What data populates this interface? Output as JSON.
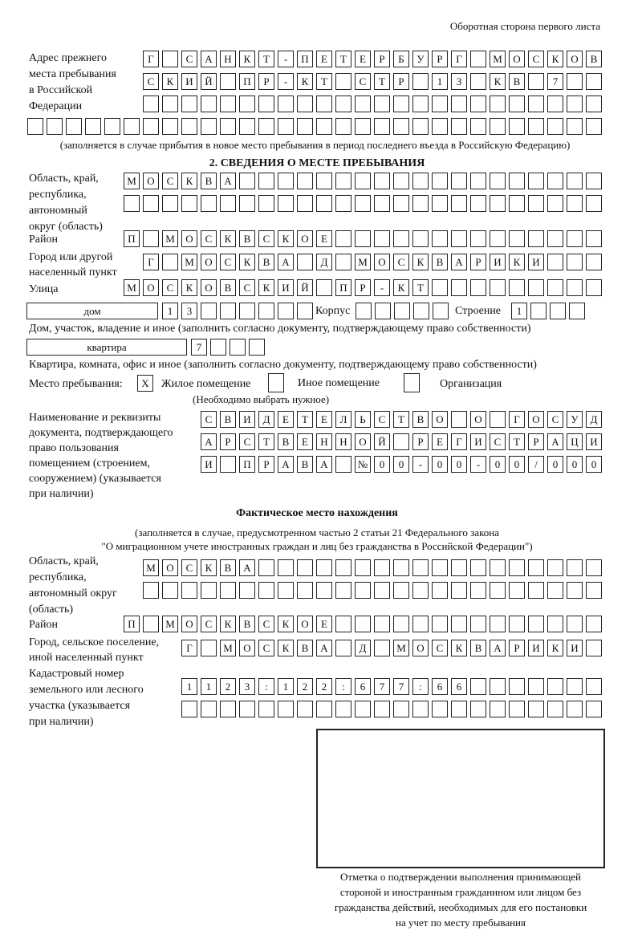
{
  "header": {
    "page_side": "Оборотная сторона первого листа"
  },
  "prev_address": {
    "label_lines": [
      "Адрес прежнего",
      "места пребывания",
      "в Российской",
      "Федерации"
    ],
    "rows": [
      "Г САНКТ-ПЕТЕРБУРГ МОСКОВ",
      "СКИЙ ПР-КТ СТР 13 КВ 7",
      "",
      ""
    ],
    "note": "(заполняется в случае прибытия в новое место пребывания в период последнего въезда в Российскую Федерацию)"
  },
  "section2": {
    "title": "2. СВЕДЕНИЯ О МЕСТЕ ПРЕБЫВАНИЯ",
    "region_label": [
      "Область, край,",
      "республика,",
      "автономный",
      "округ (область)"
    ],
    "region_rows": [
      "МОСКВА",
      ""
    ],
    "district_label": "Район",
    "district": "П МОСКВСКОЕ",
    "city_label": [
      "Город или другой",
      "населенный пункт"
    ],
    "city": "Г МОСКВА Д МОСКВАРИКИ",
    "street_label": "Улица",
    "street": "МОСКОВСКИЙ ПР-КТ",
    "house_type": "дом",
    "house": "13",
    "korpus_label": "Корпус",
    "korpus": "",
    "building_label": "Строение",
    "building": "1",
    "house_note": "Дом, участок, владение и иное (заполнить согласно документу, подтверждающему право собственности)",
    "flat_type": "квартира",
    "flat": "7",
    "flat_note": "Квартира, комната, офис и иное (заполнить согласно документу, подтверждающему право собственности)",
    "place_label": "Место пребывания:",
    "place_options": [
      {
        "label": "Жилое помещение",
        "mark": "X"
      },
      {
        "label": "Иное помещение",
        "mark": ""
      },
      {
        "label": "Организация",
        "mark": ""
      }
    ],
    "place_note": "(Необходимо выбрать нужное)",
    "doc_label": [
      "Наименование и реквизиты",
      "документа, подтверждающего",
      "право пользования",
      "помещением (строением,",
      "сооружением) (указывается",
      "при наличии)"
    ],
    "doc_rows": [
      "СВИДЕТЕЛЬСТВО О ГОСУД",
      "АРСТВЕННОЙ РЕГИСТРАЦИ",
      "И ПРАВА №00-00-00/000"
    ]
  },
  "actual": {
    "title": "Фактическое место нахождения",
    "note_lines": [
      "(заполняется в случае, предусмотренном частью 2 статьи 21 Федерального закона",
      "\"О миграционном учете иностранных граждан и лиц без гражданства в Российской Федерации\")"
    ],
    "region_label": [
      "Область, край,",
      "республика,",
      "автономный округ",
      "(область)"
    ],
    "region_rows": [
      "МОСКВА",
      ""
    ],
    "district_label": "Район",
    "district": "П МОСКВСКОЕ",
    "city_label": [
      "Город, сельское поселение,",
      "иной населенный пункт"
    ],
    "city": "Г МОСКВА Д МОСКВАРИКИ",
    "cadastre_label": [
      "Кадастровый номер",
      "земельного или лесного",
      "участка (указывается",
      "при наличии)"
    ],
    "cadastre_rows": [
      "1123:122:677:66",
      ""
    ]
  },
  "confirmation": {
    "caption_lines": [
      "Отметка о подтверждении выполнения принимающей",
      "стороной и иностранным гражданином или лицом без",
      "гражданства действий, необходимых для его постановки",
      "на учет по месту пребывания"
    ]
  }
}
